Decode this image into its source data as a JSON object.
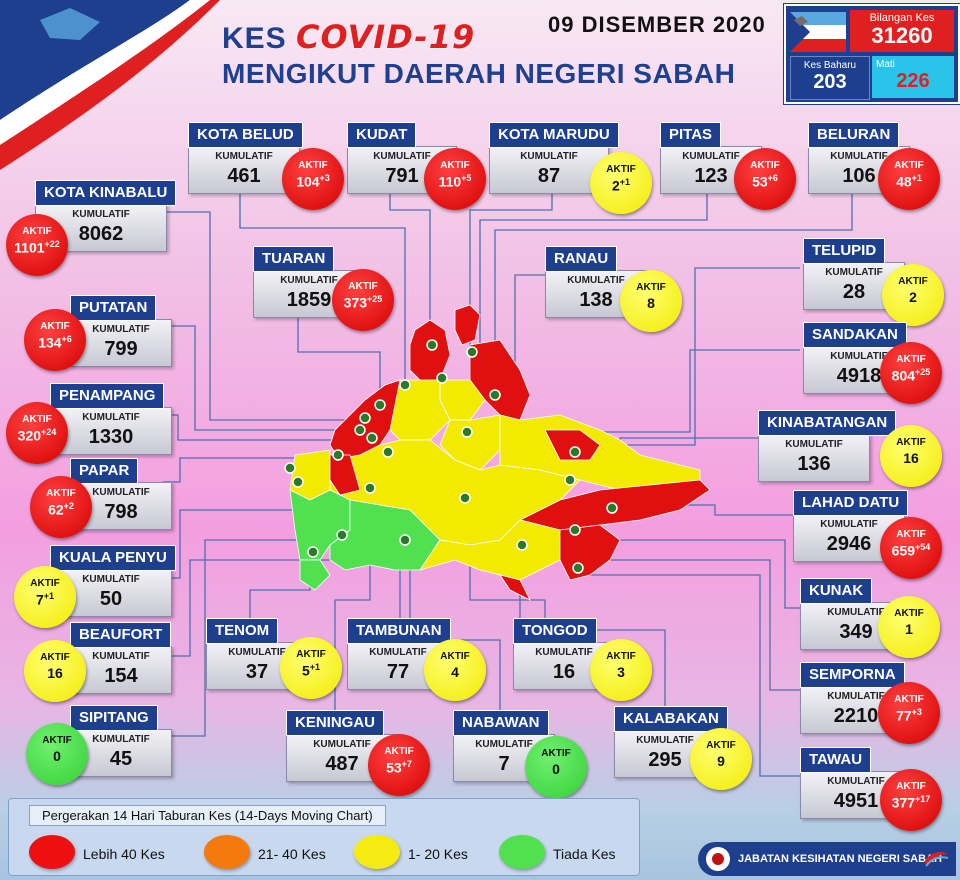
{
  "header": {
    "title_prefix": "KES",
    "title_covid": "COVID-19",
    "title_line2": "MENGIKUT DAERAH NEGERI SABAH",
    "date": "09 DISEMBER 2020"
  },
  "stats": {
    "total_label": "Bilangan Kes",
    "total_value": "31260",
    "new_label": "Kes Baharu",
    "new_value": "203",
    "death_label": "Mati",
    "death_value": "226"
  },
  "kumulatif_label": "KUMULATIF",
  "aktif_label": "AKTIF",
  "districts": [
    {
      "name": "KOTA BELUD",
      "cum": "461",
      "active": "104",
      "delta": "+3",
      "color": "red"
    },
    {
      "name": "KUDAT",
      "cum": "791",
      "active": "110",
      "delta": "+5",
      "color": "red"
    },
    {
      "name": "KOTA MARUDU",
      "cum": "87",
      "active": "2",
      "delta": "+1",
      "color": "yellow"
    },
    {
      "name": "PITAS",
      "cum": "123",
      "active": "53",
      "delta": "+6",
      "color": "red"
    },
    {
      "name": "BELURAN",
      "cum": "106",
      "active": "48",
      "delta": "+1",
      "color": "red"
    },
    {
      "name": "KOTA KINABALU",
      "cum": "8062",
      "active": "1101",
      "delta": "+22",
      "color": "red"
    },
    {
      "name": "TUARAN",
      "cum": "1859",
      "active": "373",
      "delta": "+25",
      "color": "red"
    },
    {
      "name": "RANAU",
      "cum": "138",
      "active": "8",
      "delta": "",
      "color": "yellow"
    },
    {
      "name": "TELUPID",
      "cum": "28",
      "active": "2",
      "delta": "",
      "color": "yellow"
    },
    {
      "name": "PUTATAN",
      "cum": "799",
      "active": "134",
      "delta": "+6",
      "color": "red"
    },
    {
      "name": "SANDAKAN",
      "cum": "4918",
      "active": "804",
      "delta": "+25",
      "color": "red"
    },
    {
      "name": "PENAMPANG",
      "cum": "1330",
      "active": "320",
      "delta": "+24",
      "color": "red"
    },
    {
      "name": "KINABATANGAN",
      "cum": "136",
      "active": "16",
      "delta": "",
      "color": "yellow"
    },
    {
      "name": "PAPAR",
      "cum": "798",
      "active": "62",
      "delta": "+2",
      "color": "red"
    },
    {
      "name": "LAHAD DATU",
      "cum": "2946",
      "active": "659",
      "delta": "+54",
      "color": "red"
    },
    {
      "name": "KUALA PENYU",
      "cum": "50",
      "active": "7",
      "delta": "+1",
      "color": "yellow"
    },
    {
      "name": "KUNAK",
      "cum": "349",
      "active": "1",
      "delta": "",
      "color": "yellow"
    },
    {
      "name": "BEAUFORT",
      "cum": "154",
      "active": "16",
      "delta": "",
      "color": "yellow"
    },
    {
      "name": "TENOM",
      "cum": "37",
      "active": "5",
      "delta": "+1",
      "color": "yellow"
    },
    {
      "name": "TAMBUNAN",
      "cum": "77",
      "active": "4",
      "delta": "",
      "color": "yellow"
    },
    {
      "name": "TONGOD",
      "cum": "16",
      "active": "3",
      "delta": "",
      "color": "yellow"
    },
    {
      "name": "SEMPORNA",
      "cum": "2210",
      "active": "77",
      "delta": "+3",
      "color": "red"
    },
    {
      "name": "SIPITANG",
      "cum": "45",
      "active": "0",
      "delta": "",
      "color": "green"
    },
    {
      "name": "KENINGAU",
      "cum": "487",
      "active": "53",
      "delta": "+7",
      "color": "red"
    },
    {
      "name": "NABAWAN",
      "cum": "7",
      "active": "0",
      "delta": "",
      "color": "green"
    },
    {
      "name": "KALABAKAN",
      "cum": "295",
      "active": "9",
      "delta": "",
      "color": "yellow"
    },
    {
      "name": "TAWAU",
      "cum": "4951",
      "active": "377",
      "delta": "+17",
      "color": "red"
    }
  ],
  "legend": {
    "title": "Pergerakan 14 Hari Taburan Kes (14-Days Moving Chart)",
    "items": [
      {
        "label": "Lebih 40 Kes",
        "color": "#ee1010"
      },
      {
        "label": "21- 40 Kes",
        "color": "#f47a10"
      },
      {
        "label": "1- 20 Kes",
        "color": "#f4ec10"
      },
      {
        "label": "Tiada Kes",
        "color": "#50e050"
      }
    ]
  },
  "footer": {
    "text": "JABATAN KESIHATAN NEGERI SABAH"
  },
  "colors": {
    "red": "#e01010",
    "yellow": "#f2ea00",
    "green": "#3ad03a",
    "navy": "#1d3f8e"
  }
}
